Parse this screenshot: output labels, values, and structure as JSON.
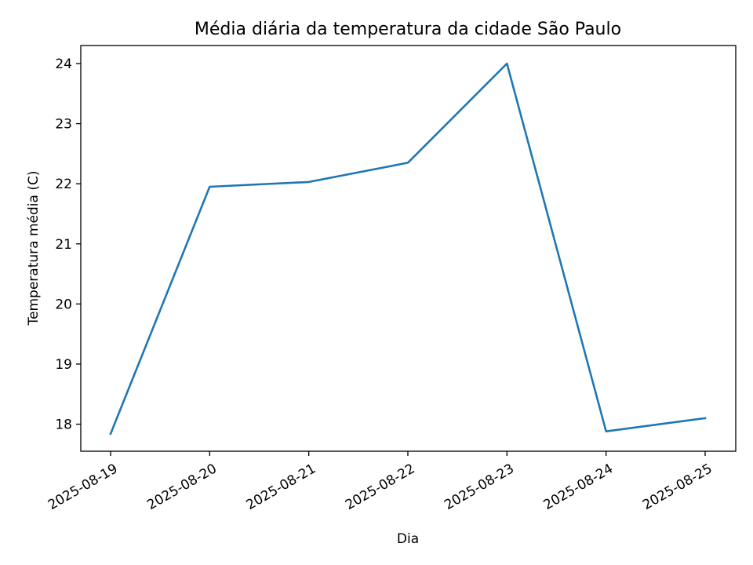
{
  "chart_data": {
    "type": "line",
    "title": "Média diária da temperatura da cidade São Paulo",
    "xlabel": "Dia",
    "ylabel": "Temperatura média (C)",
    "x": [
      "2025-08-19",
      "2025-08-20",
      "2025-08-21",
      "2025-08-22",
      "2025-08-23",
      "2025-08-24",
      "2025-08-25"
    ],
    "series": [
      {
        "values": [
          17.84,
          21.95,
          22.03,
          22.35,
          24.0,
          17.88,
          18.1
        ],
        "color": "#1f77b4"
      }
    ],
    "ylim": [
      17.55,
      24.3
    ],
    "yticks": [
      18,
      19,
      20,
      21,
      22,
      23,
      24
    ],
    "grid": false
  }
}
